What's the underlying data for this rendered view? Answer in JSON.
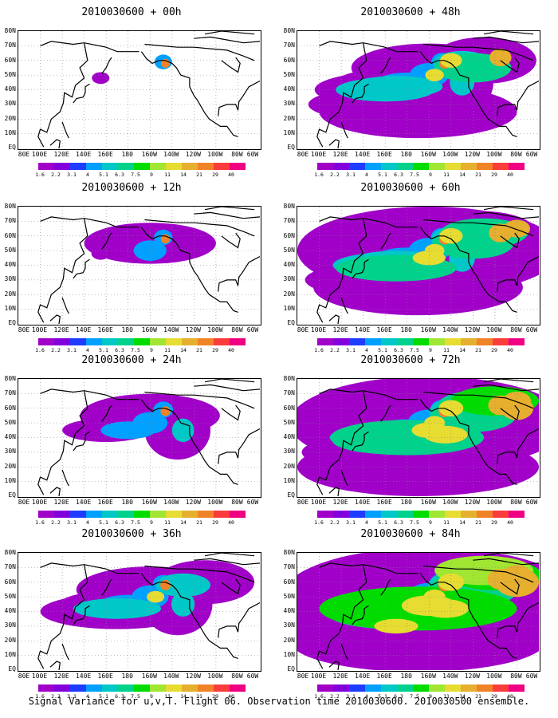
{
  "panels": [
    {
      "title": "2010030600 + 00h",
      "level": 0
    },
    {
      "title": "2010030600 + 48h",
      "level": 4
    },
    {
      "title": "2010030600 + 12h",
      "level": 1
    },
    {
      "title": "2010030600 + 60h",
      "level": 5
    },
    {
      "title": "2010030600 + 24h",
      "level": 2
    },
    {
      "title": "2010030600 + 72h",
      "level": 6
    },
    {
      "title": "2010030600 + 36h",
      "level": 3
    },
    {
      "title": "2010030600 + 84h",
      "level": 7
    }
  ],
  "lat_labels": [
    "80N",
    "70N",
    "60N",
    "50N",
    "40N",
    "30N",
    "20N",
    "10N",
    "EQ"
  ],
  "lon_labels": [
    "80E",
    "100E",
    "120E",
    "140E",
    "160E",
    "180",
    "160W",
    "140W",
    "120W",
    "100W",
    "80W",
    "60W"
  ],
  "colorbar": {
    "labels": [
      "1.6",
      "2.2",
      "3.1",
      "4",
      "5.1",
      "6.3",
      "7.5",
      "9",
      "11",
      "14",
      "21",
      "29",
      "40"
    ],
    "colors": [
      "#a000c8",
      "#8200dc",
      "#1e3cff",
      "#00a0ff",
      "#00c8c8",
      "#00d28c",
      "#00dc00",
      "#a0e632",
      "#e6dc32",
      "#e6af2d",
      "#f08228",
      "#fa3c3c",
      "#f00082"
    ]
  },
  "footer": "Signal Variance for u,v,T. Flight 06. Observation time 2010030600. 2010030500 ensemble."
}
